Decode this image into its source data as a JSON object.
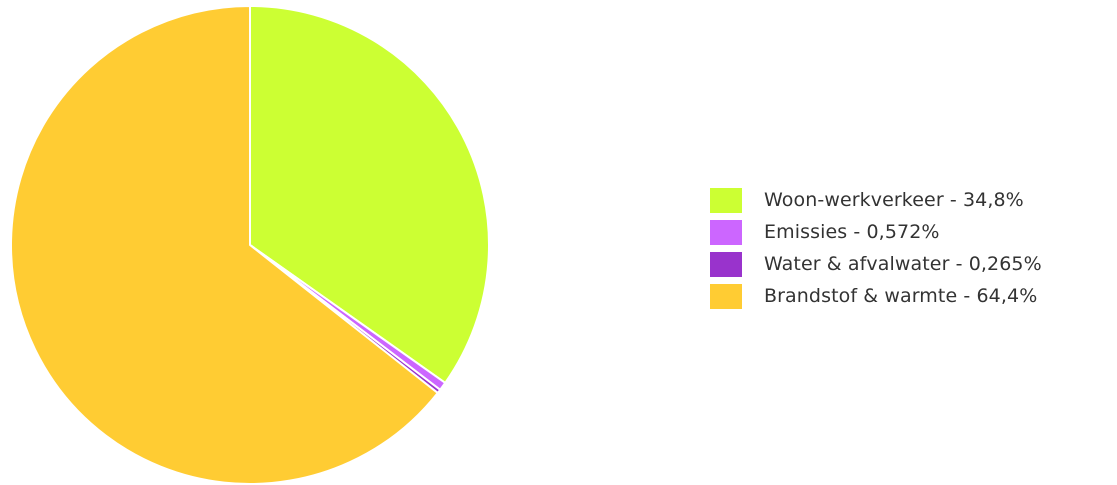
{
  "chart_data": {
    "type": "pie",
    "title": "",
    "legend_position": "right",
    "slices": [
      {
        "label": "Woon-werkverkeer - 34,8%",
        "value": 34.8,
        "color": "#ccff33"
      },
      {
        "label": "Emissies - 0,572%",
        "value": 0.572,
        "color": "#cc66ff"
      },
      {
        "label": "Water & afvalwater - 0,265%",
        "value": 0.265,
        "color": "#9933cc"
      },
      {
        "label": "Brandstof & warmte - 64,4%",
        "value": 64.4,
        "color": "#ffcc33"
      }
    ]
  }
}
